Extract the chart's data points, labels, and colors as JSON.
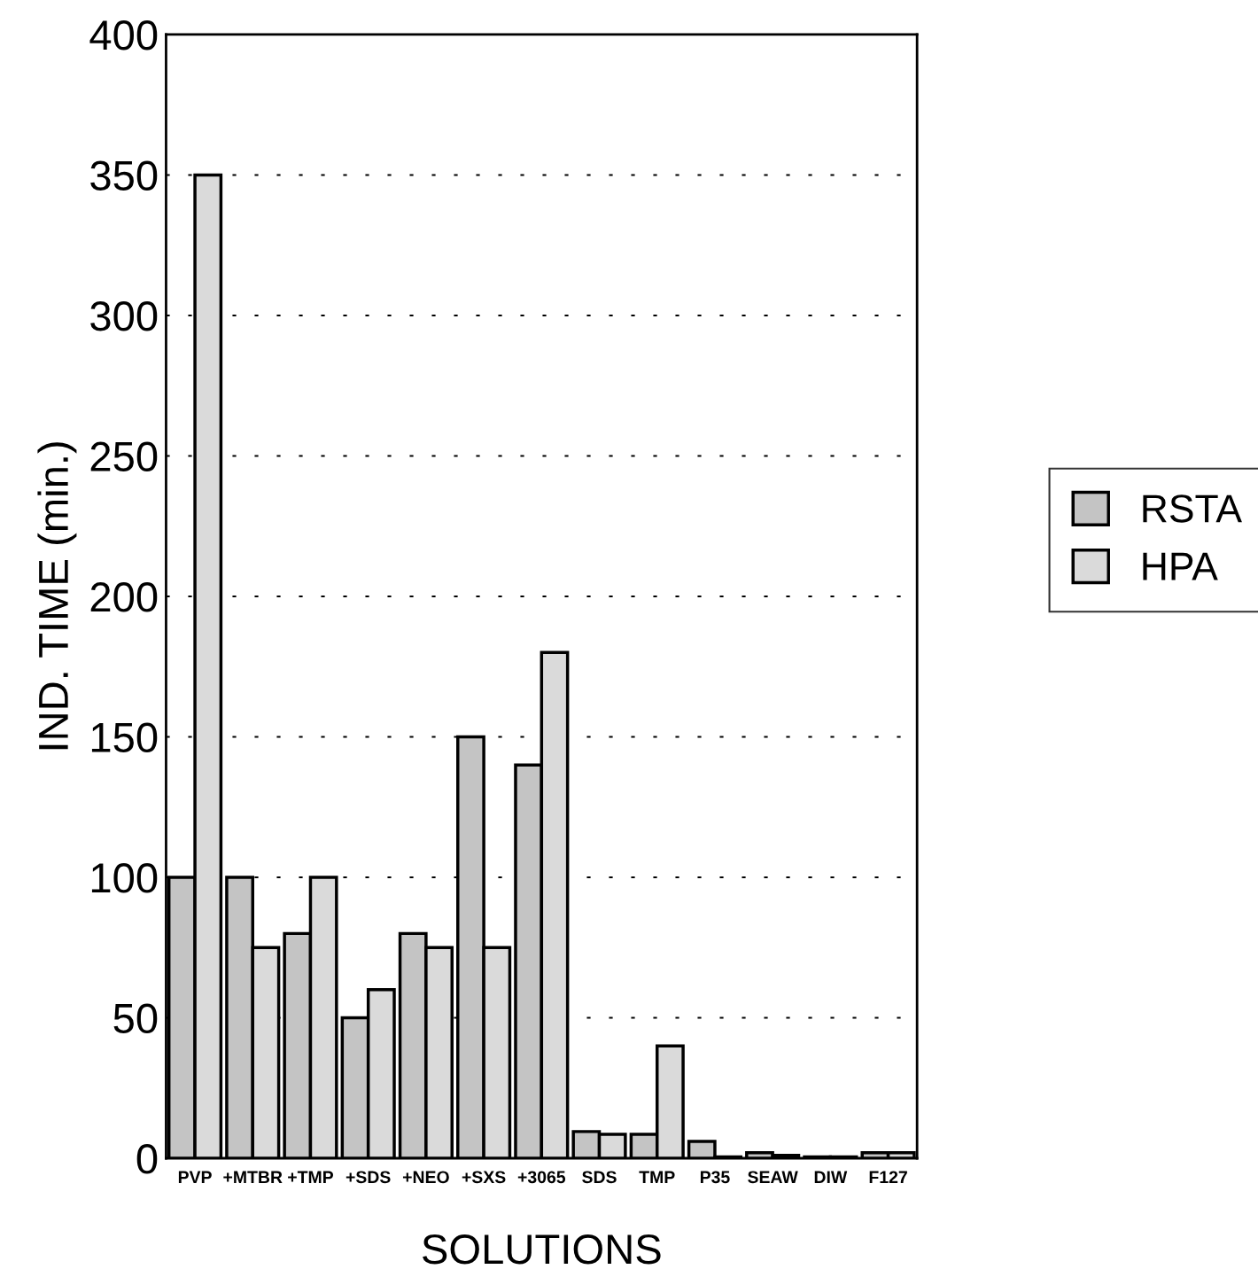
{
  "chart_data": {
    "type": "bar",
    "xlabel": "SOLUTIONS",
    "ylabel": "IND. TIME (min.)",
    "categories": [
      "PVP",
      "+MTBR",
      "+TMP",
      "+SDS",
      "+NEO",
      "+SXS",
      "+3065",
      "SDS",
      "TMP",
      "P35",
      "SEAW",
      "DIW",
      "F127"
    ],
    "series": [
      {
        "name": "RSTA",
        "color": "#c4c4c4",
        "values": [
          100,
          100,
          80,
          50,
          80,
          150,
          140,
          9.5,
          8.5,
          6,
          2,
          0.5,
          2
        ]
      },
      {
        "name": "HPA",
        "color": "#dadada",
        "values": [
          350,
          75,
          100,
          60,
          75,
          75,
          180,
          8.5,
          40,
          0.5,
          1,
          0.5,
          2
        ]
      }
    ],
    "ylim": [
      0,
      400
    ],
    "yticks": [
      0,
      50,
      100,
      150,
      200,
      250,
      300,
      350,
      400
    ],
    "grid": "y",
    "legend": "right"
  }
}
